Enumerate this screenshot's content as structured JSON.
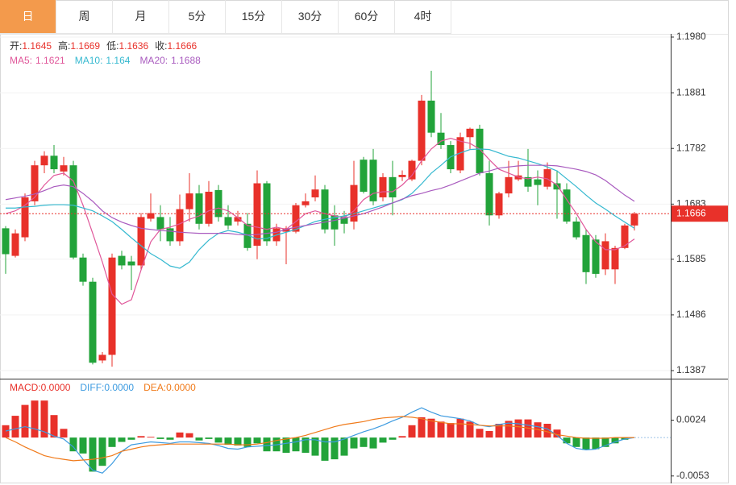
{
  "tabs": [
    "日",
    "周",
    "月",
    "5分",
    "15分",
    "30分",
    "60分",
    "4时"
  ],
  "chart_data": [
    {
      "type": "candlestick",
      "up_color": "#e8312a",
      "down_color": "#22a33a",
      "info_labels": [
        "开:",
        "高:",
        "低:",
        "收:"
      ],
      "open": [
        1.164,
        1.1591,
        1.1624,
        1.1688,
        1.1752,
        1.1769,
        1.1741,
        1.1752,
        1.1588,
        1.1545,
        1.1405,
        1.1415,
        1.1591,
        1.1581,
        1.1574,
        1.1657,
        1.166,
        1.164,
        1.1617,
        1.1674,
        1.1702,
        1.1648,
        1.1708,
        1.166,
        1.1652,
        1.1648,
        1.1609,
        1.172,
        1.1617,
        1.1634,
        1.1634,
        1.1681,
        1.1695,
        1.1709,
        1.1663,
        1.166,
        1.1652,
        1.1762,
        1.1762,
        1.1695,
        1.1731,
        1.1731,
        1.1727,
        1.176,
        1.1867,
        1.181,
        1.1788,
        1.1743,
        1.1802,
        1.1817,
        1.1738,
        1.1663,
        1.1702,
        1.1727,
        1.1731,
        1.1727,
        1.1714,
        1.172,
        1.1709,
        1.1652,
        1.1628,
        1.162,
        1.1567,
        1.1567,
        1.1605,
        1.1645
      ],
      "high": [
        1.1644,
        1.1638,
        1.1702,
        1.176,
        1.1777,
        1.1788,
        1.1767,
        1.176,
        1.1595,
        1.1552,
        1.142,
        1.1595,
        1.16,
        1.1591,
        1.1667,
        1.1702,
        1.1681,
        1.166,
        1.17,
        1.1738,
        1.1717,
        1.1724,
        1.1717,
        1.1681,
        1.1671,
        1.1667,
        1.1743,
        1.1724,
        1.1648,
        1.1644,
        1.1685,
        1.1702,
        1.1734,
        1.1717,
        1.1681,
        1.1671,
        1.176,
        1.1767,
        1.1781,
        1.1738,
        1.176,
        1.1743,
        1.1762,
        1.1877,
        1.192,
        1.1845,
        1.1795,
        1.181,
        1.1819,
        1.1824,
        1.176,
        1.1705,
        1.176,
        1.176,
        1.1781,
        1.1743,
        1.1757,
        1.1743,
        1.172,
        1.166,
        1.1638,
        1.1628,
        1.1631,
        1.1609,
        1.1648,
        1.1669
      ],
      "low": [
        1.1559,
        1.1588,
        1.1617,
        1.1681,
        1.1738,
        1.1738,
        1.1734,
        1.1585,
        1.1538,
        1.1398,
        1.14,
        1.1394,
        1.1567,
        1.153,
        1.1567,
        1.1652,
        1.1617,
        1.1609,
        1.1609,
        1.1652,
        1.1638,
        1.1643,
        1.1652,
        1.1638,
        1.1645,
        1.16,
        1.1585,
        1.1609,
        1.1609,
        1.1576,
        1.1631,
        1.1677,
        1.1688,
        1.1631,
        1.1609,
        1.1631,
        1.1638,
        1.1702,
        1.1681,
        1.1688,
        1.1663,
        1.1724,
        1.1724,
        1.1752,
        1.1802,
        1.1781,
        1.1738,
        1.1738,
        1.1781,
        1.1734,
        1.1645,
        1.1657,
        1.1695,
        1.1724,
        1.1705,
        1.1681,
        1.1709,
        1.1657,
        1.1648,
        1.162,
        1.1541,
        1.1552,
        1.1557,
        1.1541,
        1.1603,
        1.1636
      ],
      "close": [
        1.1594,
        1.1631,
        1.1695,
        1.1752,
        1.1769,
        1.1745,
        1.1752,
        1.1588,
        1.1545,
        1.1401,
        1.1415,
        1.1588,
        1.1574,
        1.1574,
        1.166,
        1.1667,
        1.1638,
        1.1617,
        1.1674,
        1.1702,
        1.1648,
        1.1705,
        1.166,
        1.1645,
        1.166,
        1.1605,
        1.172,
        1.1617,
        1.164,
        1.164,
        1.1681,
        1.1688,
        1.1709,
        1.1638,
        1.1638,
        1.1648,
        1.1717,
        1.1705,
        1.1688,
        1.1731,
        1.1695,
        1.1735,
        1.176,
        1.1867,
        1.181,
        1.1788,
        1.1745,
        1.1802,
        1.1817,
        1.1738,
        1.1663,
        1.1702,
        1.1731,
        1.1734,
        1.1714,
        1.1717,
        1.1745,
        1.1709,
        1.1652,
        1.1624,
        1.1562,
        1.1559,
        1.1617,
        1.1605,
        1.1645,
        1.1666
      ],
      "series": [
        {
          "name": "MA5:",
          "color": "#e0579a",
          "values": [
            1.1666,
            1.1671,
            1.1681,
            1.1695,
            1.1717,
            1.1734,
            1.1738,
            1.1724,
            1.1681,
            1.1631,
            1.158,
            1.1523,
            1.1505,
            1.1513,
            1.1566,
            1.1616,
            1.1638,
            1.1642,
            1.1648,
            1.1656,
            1.1662,
            1.1671,
            1.1676,
            1.1671,
            1.1659,
            1.1645,
            1.1642,
            1.1638,
            1.1642,
            1.1638,
            1.1652,
            1.1666,
            1.1671,
            1.1666,
            1.1662,
            1.1659,
            1.1671,
            1.1691,
            1.1702,
            1.1705,
            1.1705,
            1.1717,
            1.1734,
            1.176,
            1.1781,
            1.1795,
            1.18,
            1.1795,
            1.1791,
            1.1781,
            1.1762,
            1.1745,
            1.1738,
            1.1731,
            1.1728,
            1.1731,
            1.1728,
            1.1717,
            1.1691,
            1.1666,
            1.1638,
            1.1616,
            1.1602,
            1.1602,
            1.1609,
            1.1621
          ]
        },
        {
          "name": "MA10:",
          "color": "#36b9d0",
          "values": [
            1.1676,
            1.1676,
            1.1678,
            1.1679,
            1.1681,
            1.1682,
            1.1682,
            1.1681,
            1.1676,
            1.1671,
            1.1662,
            1.1652,
            1.1638,
            1.1623,
            1.1609,
            1.1595,
            1.1585,
            1.1573,
            1.1569,
            1.158,
            1.1602,
            1.1619,
            1.1631,
            1.1636,
            1.1633,
            1.1628,
            1.1621,
            1.1622,
            1.1628,
            1.1633,
            1.1638,
            1.1645,
            1.1652,
            1.1656,
            1.1659,
            1.1662,
            1.1666,
            1.1671,
            1.1676,
            1.1681,
            1.1685,
            1.1691,
            1.1702,
            1.1719,
            1.1738,
            1.1752,
            1.1767,
            1.1774,
            1.178,
            1.1781,
            1.178,
            1.1774,
            1.1768,
            1.1765,
            1.176,
            1.1755,
            1.1749,
            1.1742,
            1.1728,
            1.1714,
            1.1699,
            1.1685,
            1.1674,
            1.1662,
            1.1651,
            1.164
          ]
        },
        {
          "name": "MA20:",
          "color": "#a95bbf",
          "values": [
            1.1691,
            1.1694,
            1.1697,
            1.1701,
            1.1707,
            1.1714,
            1.1717,
            1.1714,
            1.1702,
            1.1688,
            1.1671,
            1.1659,
            1.1651,
            1.1645,
            1.164,
            1.1638,
            1.1636,
            1.1635,
            1.1633,
            1.1632,
            1.1631,
            1.1631,
            1.1631,
            1.1631,
            1.1629,
            1.1628,
            1.1629,
            1.1631,
            1.1633,
            1.1638,
            1.1642,
            1.1645,
            1.1648,
            1.1651,
            1.1654,
            1.1658,
            1.1662,
            1.1666,
            1.1672,
            1.1678,
            1.1685,
            1.1692,
            1.1698,
            1.1702,
            1.1707,
            1.1711,
            1.1717,
            1.1724,
            1.1731,
            1.1738,
            1.1742,
            1.1747,
            1.1749,
            1.1751,
            1.1752,
            1.1752,
            1.1752,
            1.1751,
            1.1748,
            1.1745,
            1.1741,
            1.1735,
            1.1725,
            1.1712,
            1.1699,
            1.1688
          ]
        }
      ],
      "ylim": [
        1.1387,
        1.198
      ],
      "yticks": [
        {
          "value": 1.198,
          "label": "1.1980"
        },
        {
          "value": 1.1881,
          "label": "1.1881"
        },
        {
          "value": 1.1782,
          "label": "1.1782"
        },
        {
          "value": 1.1683,
          "label": "1.1683"
        },
        {
          "value": 1.1585,
          "label": "1.1585"
        },
        {
          "value": 1.1486,
          "label": "1.1486"
        },
        {
          "value": 1.1387,
          "label": "1.1387"
        }
      ]
    },
    {
      "type": "macd",
      "legend": [
        {
          "name": "MACD:",
          "label": "0.0000",
          "color": "#e8312a"
        },
        {
          "name": "DIFF:",
          "label": "0.0000",
          "color": "#3d9be0"
        },
        {
          "name": "DEA:",
          "label": "0.0000",
          "color": "#f07a1a"
        }
      ],
      "macd": [
        0.0017,
        0.003,
        0.0045,
        0.0051,
        0.0051,
        0.0031,
        0.0012,
        -0.0019,
        -0.0022,
        -0.0047,
        -0.0039,
        -0.0013,
        -0.0006,
        -0.0003,
        0.0002,
        0.0001,
        -0.0002,
        -0.0003,
        0.0007,
        0.0006,
        -0.0004,
        -0.0002,
        -0.0007,
        -0.001,
        -0.0011,
        -0.0013,
        -0.0008,
        -0.0019,
        -0.0019,
        -0.0021,
        -0.0019,
        -0.0021,
        -0.0025,
        -0.0032,
        -0.003,
        -0.0025,
        -0.0015,
        -0.0013,
        -0.0015,
        -0.0007,
        -0.0003,
        0.0002,
        0.0017,
        0.0028,
        0.0026,
        0.0022,
        0.002,
        0.0026,
        0.0022,
        0.0012,
        0.0009,
        0.0019,
        0.0023,
        0.0025,
        0.0025,
        0.0021,
        0.0019,
        0.0011,
        -0.0008,
        -0.0013,
        -0.0017,
        -0.0016,
        -0.0013,
        -0.0008,
        -0.0003,
        0
      ],
      "diff": [
        0.0009,
        0.0012,
        0.0015,
        0.0012,
        0.0008,
        0.0002,
        -0.0002,
        -0.0013,
        -0.003,
        -0.0045,
        -0.0049,
        -0.0036,
        -0.0019,
        -0.001,
        -0.0008,
        -0.0006,
        -0.0007,
        -0.0008,
        -0.0006,
        -0.0006,
        -0.0007,
        -0.0008,
        -0.0011,
        -0.0015,
        -0.0016,
        -0.0013,
        -0.0012,
        -0.0011,
        -0.001,
        -0.0008,
        -0.0006,
        -0.0003,
        -0.0003,
        -0.0006,
        -0.0006,
        -0.0002,
        0.0003,
        0.0008,
        0.0012,
        0.0017,
        0.0023,
        0.0028,
        0.0035,
        0.0041,
        0.0035,
        0.003,
        0.0028,
        0.0026,
        0.0023,
        0.0017,
        0.0015,
        0.0018,
        0.002,
        0.0019,
        0.0017,
        0.0015,
        0.0012,
        0.0003,
        -0.0008,
        -0.0015,
        -0.0017,
        -0.0016,
        -0.0011,
        -0.0006,
        -0.0002,
        0
      ],
      "dea": [
        0,
        -0.0006,
        -0.0013,
        -0.0019,
        -0.0025,
        -0.0028,
        -0.003,
        -0.0032,
        -0.0031,
        -0.003,
        -0.0028,
        -0.0025,
        -0.0019,
        -0.0016,
        -0.0013,
        -0.0011,
        -0.001,
        -0.0009,
        -0.0009,
        -0.0009,
        -0.0009,
        -0.0009,
        -0.0009,
        -0.0009,
        -0.001,
        -0.001,
        -0.0009,
        -0.0007,
        -0.0004,
        -0.0002,
        0,
        0.0003,
        0.0007,
        0.0011,
        0.0015,
        0.0018,
        0.002,
        0.0022,
        0.0025,
        0.0027,
        0.0028,
        0.0029,
        0.0028,
        0.0026,
        0.0023,
        0.0021,
        0.0019,
        0.0019,
        0.0018,
        0.0017,
        0.0016,
        0.0016,
        0.0016,
        0.0015,
        0.0013,
        0.0011,
        0.0008,
        0.0004,
        0.0002,
        0,
        -0.0001,
        -0.0001,
        -0.0001,
        0,
        0,
        0
      ],
      "ylim": [
        -0.0061,
        0.0079
      ],
      "yticks": [
        0.0024,
        -0.0053
      ]
    }
  ]
}
